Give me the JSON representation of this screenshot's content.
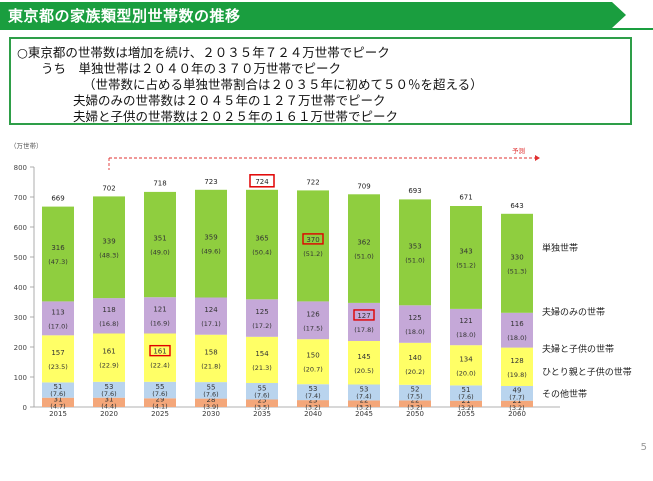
{
  "header": {
    "title": "東京都の家族類型別世帯数の推移"
  },
  "summary": {
    "lines": [
      "○東京都の世帯数は増加を続け、２０３５年７２４万世帯でピーク",
      "うち　単独世帯は２０４０年の３７０万世帯でピーク",
      "（世帯数に占める単独世帯割合は２０３５年に初めて５０％を超える）",
      "夫婦のみの世帯数は２０４５年の１２７万世帯でピーク",
      "夫婦と子供の世帯数は２０２５年の１６１万世帯でピーク"
    ]
  },
  "page_number": "5",
  "colors": {
    "single": "#8fce3f",
    "couple": "#c5a8d8",
    "couple_child": "#ffff66",
    "single_parent": "#b9d4ee",
    "other": "#f4a77a",
    "highlight": "#e00000",
    "forecast": "#e03030"
  },
  "chart_data": {
    "type": "bar",
    "stacked": true,
    "ylabel": "（万世帯）",
    "ylim": [
      0,
      800
    ],
    "yticks": [
      0,
      100,
      200,
      300,
      400,
      500,
      600,
      700,
      800
    ],
    "forecast_label": "予測",
    "categories": [
      "2015",
      "2020",
      "2025",
      "2030",
      "2035",
      "2040",
      "2045",
      "2050",
      "2055",
      "2060"
    ],
    "totals": [
      "669",
      "702",
      "718",
      "723",
      "724",
      "722",
      "709",
      "693",
      "671",
      "643"
    ],
    "total_values": [
      669,
      702,
      718,
      723,
      724,
      722,
      709,
      693,
      671,
      643
    ],
    "series": [
      {
        "key": "other",
        "name": "その他世帯",
        "values": [
          31,
          31,
          29,
          28,
          25,
          23,
          22,
          22,
          21,
          21
        ],
        "labels": [
          "31",
          "31",
          "29",
          "28",
          "25",
          "23",
          "22",
          "22",
          "21",
          "21"
        ],
        "pcts": [
          "(4.7)",
          "(4.4)",
          "(4.1)",
          "(3.9)",
          "(3.5)",
          "(3.2)",
          "(3.2)",
          "(3.2)",
          "(3.2)",
          "(3.2)"
        ]
      },
      {
        "key": "single_parent",
        "name": "ひとり親と子供の世帯",
        "values": [
          51,
          53,
          55,
          55,
          55,
          53,
          53,
          52,
          51,
          49
        ],
        "labels": [
          "51",
          "53",
          "55",
          "55",
          "55",
          "53",
          "53",
          "52",
          "51",
          "49"
        ],
        "pcts": [
          "(7.6)",
          "(7.6)",
          "(7.6)",
          "(7.6)",
          "(7.6)",
          "(7.4)",
          "(7.4)",
          "(7.5)",
          "(7.6)",
          "(7.7)"
        ]
      },
      {
        "key": "couple_child",
        "name": "夫婦と子供の世帯",
        "values": [
          157,
          161,
          161,
          158,
          154,
          150,
          145,
          140,
          134,
          128
        ],
        "labels": [
          "157",
          "161",
          "161",
          "158",
          "154",
          "150",
          "145",
          "140",
          "134",
          "128"
        ],
        "pcts": [
          "(23.5)",
          "(22.9)",
          "(22.4)",
          "(21.8)",
          "(21.3)",
          "(20.7)",
          "(20.5)",
          "(20.2)",
          "(20.0)",
          "(19.8)"
        ]
      },
      {
        "key": "couple",
        "name": "夫婦のみの世帯",
        "values": [
          113,
          118,
          121,
          124,
          125,
          126,
          127,
          125,
          121,
          116
        ],
        "labels": [
          "113",
          "118",
          "121",
          "124",
          "125",
          "126",
          "127",
          "125",
          "121",
          "116"
        ],
        "pcts": [
          "(17.0)",
          "(16.8)",
          "(16.9)",
          "(17.1)",
          "(17.2)",
          "(17.5)",
          "(17.8)",
          "(18.0)",
          "(18.0)",
          "(18.0)"
        ]
      },
      {
        "key": "single",
        "name": "単独世帯",
        "values": [
          316,
          339,
          351,
          359,
          365,
          370,
          362,
          353,
          343,
          330
        ],
        "labels": [
          "316",
          "339",
          "351",
          "359",
          "365",
          "370",
          "362",
          "353",
          "343",
          "330"
        ],
        "pcts": [
          "(47.3)",
          "(48.3)",
          "(49.0)",
          "(49.6)",
          "(50.4)",
          "(51.2)",
          "(51.0)",
          "(51.0)",
          "(51.2)",
          "(51.3)"
        ]
      }
    ],
    "highlights": [
      {
        "series": "total",
        "category": "2035"
      },
      {
        "series": "single",
        "category": "2040"
      },
      {
        "series": "couple",
        "category": "2045"
      },
      {
        "series": "couple_child",
        "category": "2025"
      }
    ]
  }
}
